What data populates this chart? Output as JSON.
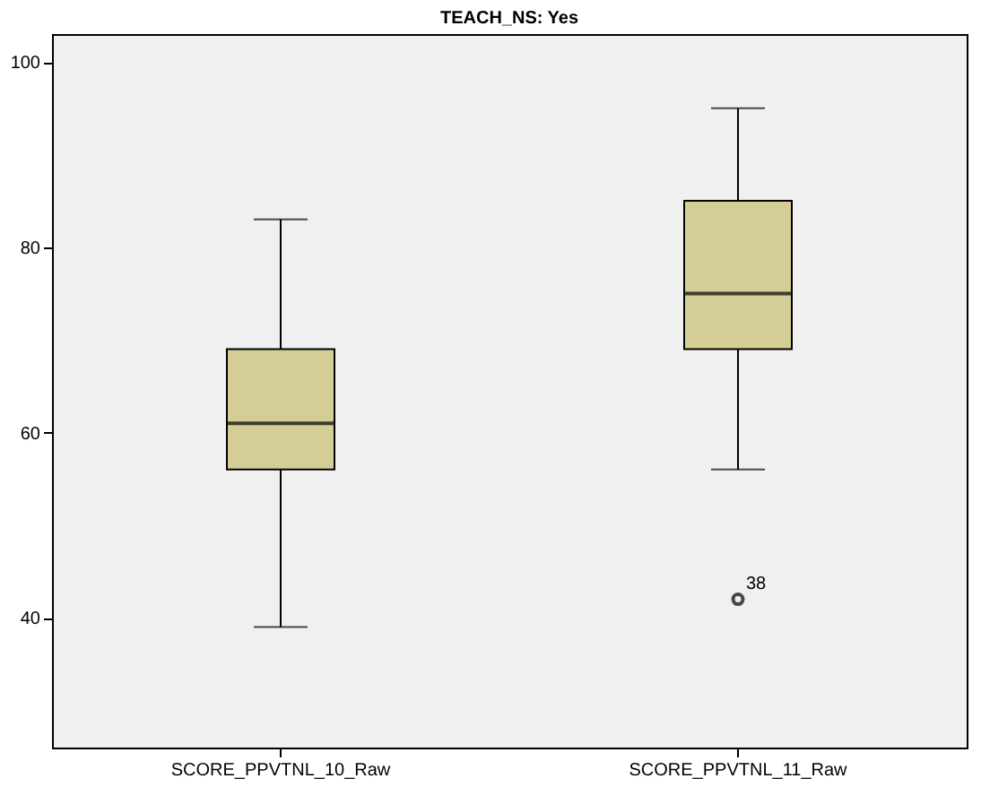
{
  "chart_data": {
    "type": "box",
    "title": "TEACH_NS: Yes",
    "categories": [
      "SCORE_PPVTNL_10_Raw",
      "SCORE_PPVTNL_11_Raw"
    ],
    "boxes": [
      {
        "low": 39,
        "q1": 56,
        "median": 61,
        "q3": 69,
        "high": 83
      },
      {
        "low": 56,
        "q1": 69,
        "median": 75,
        "q3": 85,
        "high": 95,
        "outliers": [
          42
        ]
      }
    ],
    "color": "#d4ce96",
    "ylim": [
      26,
      103
    ],
    "yticks": [
      40,
      60,
      80,
      100
    ],
    "grid": false,
    "annotations": [
      "38"
    ]
  }
}
